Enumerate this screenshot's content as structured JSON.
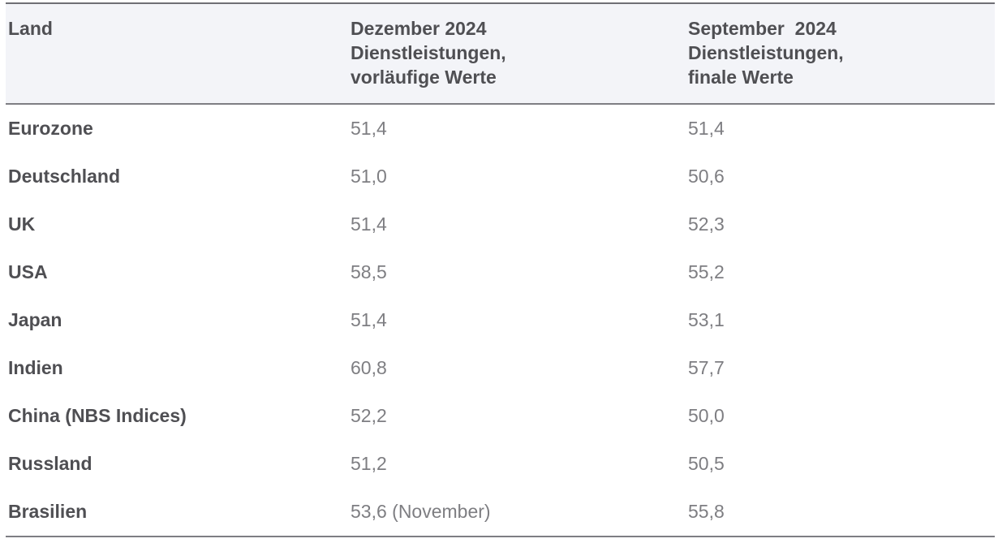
{
  "colors": {
    "header_background": "#f3f4f8",
    "border_top": "#6f6f74",
    "border_bottom": "#7e7e83",
    "header_text": "#4f4f53",
    "country_text": "#4f4f53",
    "value_text": "#7e7e82"
  },
  "chart_data": {
    "type": "table",
    "columns": [
      "Land",
      "Dezember 2024\nDienstleistungen,\nvorläufige Werte",
      "September  2024\nDienstleistungen,\nfinale Werte"
    ],
    "rows": [
      [
        "Eurozone",
        "51,4",
        "51,4"
      ],
      [
        "Deutschland",
        "51,0",
        "50,6"
      ],
      [
        "UK",
        "51,4",
        "52,3"
      ],
      [
        "USA",
        "58,5",
        "55,2"
      ],
      [
        "Japan",
        "51,4",
        "53,1"
      ],
      [
        "Indien",
        "60,8",
        "57,7"
      ],
      [
        "China (NBS Indices)",
        "52,2",
        "50,0"
      ],
      [
        "Russland",
        "51,2",
        "50,5"
      ],
      [
        "Brasilien",
        "53,6 (November)",
        "55,8"
      ]
    ],
    "categories": [
      "Eurozone",
      "Deutschland",
      "UK",
      "USA",
      "Japan",
      "Indien",
      "China (NBS Indices)",
      "Russland",
      "Brasilien"
    ],
    "series": [
      {
        "name": "Dezember 2024 Dienstleistungen, vorläufige Werte",
        "values": [
          51.4,
          51.0,
          51.4,
          58.5,
          51.4,
          60.8,
          52.2,
          51.2,
          53.6
        ]
      },
      {
        "name": "September 2024 Dienstleistungen, finale Werte",
        "values": [
          51.4,
          50.6,
          52.3,
          55.2,
          53.1,
          57.7,
          50.0,
          50.5,
          55.8
        ]
      }
    ]
  }
}
